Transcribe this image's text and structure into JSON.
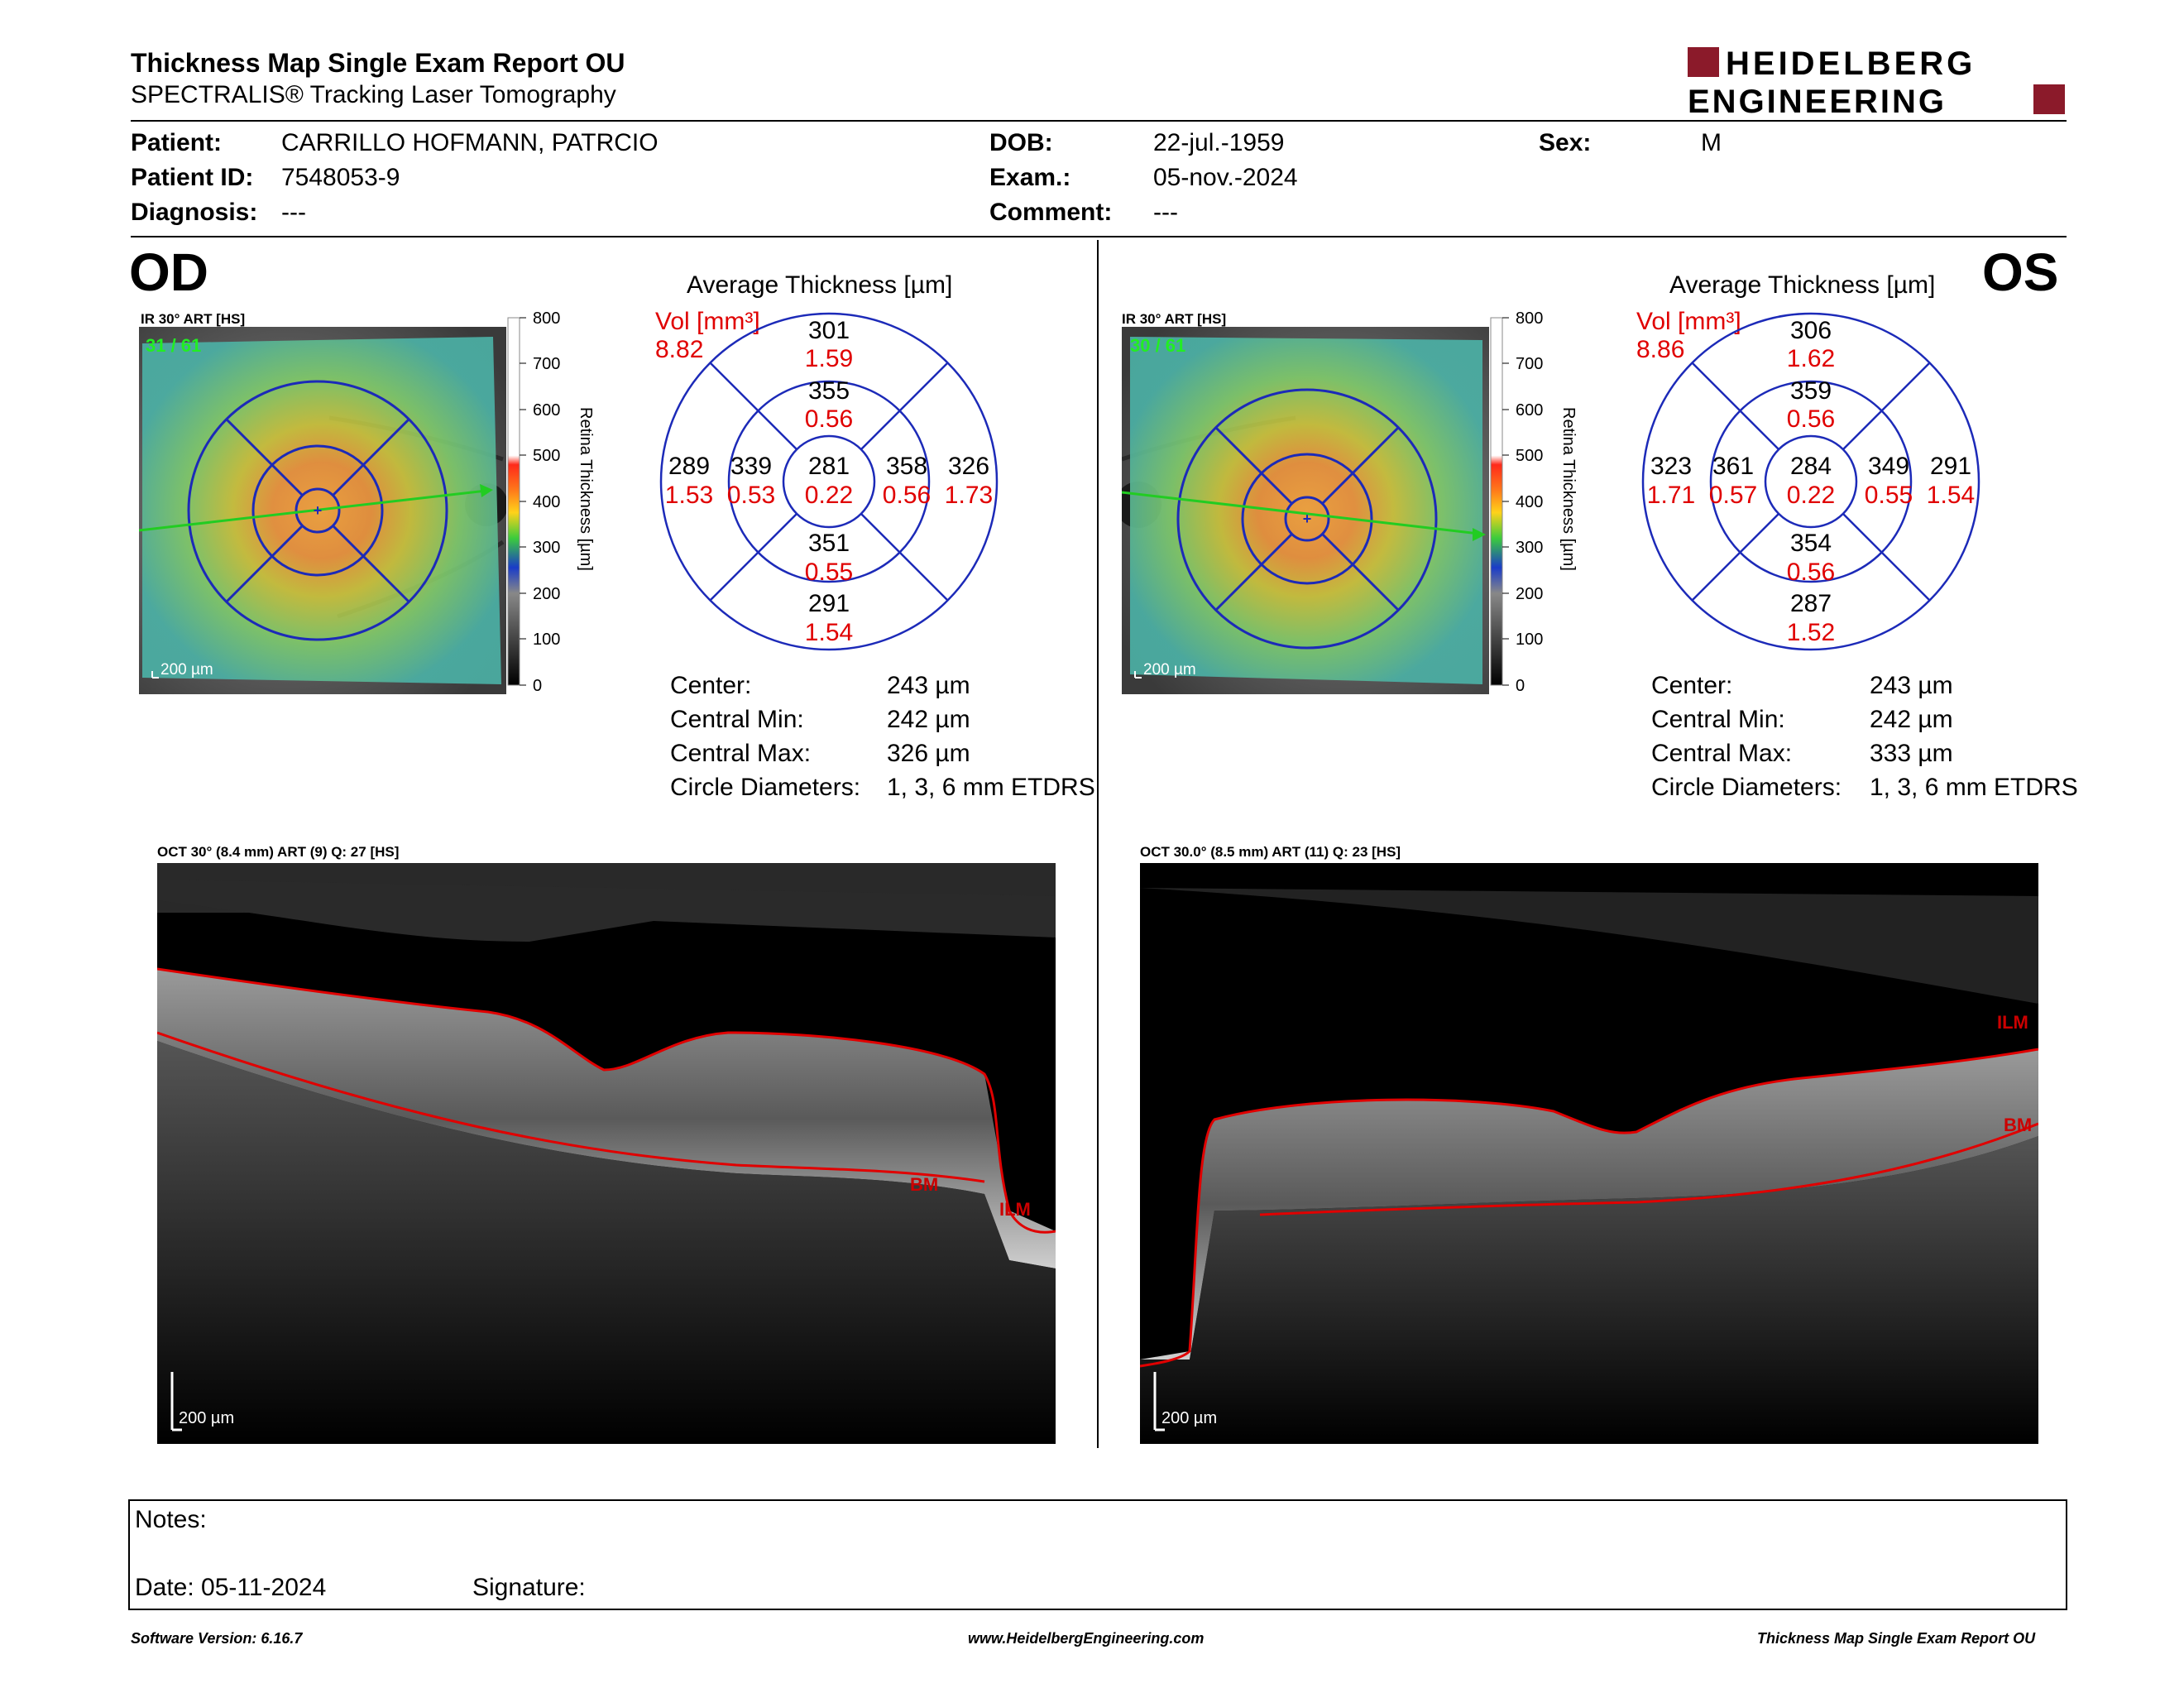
{
  "report": {
    "title": "Thickness Map Single Exam Report OU",
    "subtitle": "SPECTRALIS® Tracking Laser Tomography",
    "brand_top": "HEIDELBERG",
    "brand_bottom": "ENGINEERING",
    "brand_color": "#8b1a2a"
  },
  "patient": {
    "patient_label": "Patient:",
    "patient_value": "CARRILLO HOFMANN, PATRCIO",
    "id_label": "Patient ID:",
    "id_value": "7548053-9",
    "diag_label": "Diagnosis:",
    "diag_value": "---",
    "dob_label": "DOB:",
    "dob_value": "22-jul.-1959",
    "exam_label": "Exam.:",
    "exam_value": "05-nov.-2024",
    "comment_label": "Comment:",
    "comment_value": "---",
    "sex_label": "Sex:",
    "sex_value": "M"
  },
  "od": {
    "eye": "OD",
    "ir_label": "IR 30° ART [HS]",
    "frame": "31 / 61",
    "scale": "200 µm",
    "colorbar_ticks": [
      "800",
      "700",
      "600",
      "500",
      "400",
      "300",
      "200",
      "100",
      "0"
    ],
    "colorbar_title": "Retina Thickness [µm]",
    "avg_title": "Average Thickness [µm]",
    "vol_label": "Vol [mm³]",
    "vol_value": "8.82",
    "sectors": {
      "outer_top": {
        "t": "301",
        "v": "1.59"
      },
      "inner_top": {
        "t": "355",
        "v": "0.56"
      },
      "outer_left": {
        "t": "289",
        "v": "1.53"
      },
      "inner_left": {
        "t": "339",
        "v": "0.53"
      },
      "center": {
        "t": "281",
        "v": "0.22"
      },
      "inner_right": {
        "t": "358",
        "v": "0.56"
      },
      "outer_right": {
        "t": "326",
        "v": "1.73"
      },
      "inner_bottom": {
        "t": "351",
        "v": "0.55"
      },
      "outer_bottom": {
        "t": "291",
        "v": "1.54"
      }
    },
    "stats": [
      {
        "label": "Center:",
        "value": "243 µm"
      },
      {
        "label": "Central Min:",
        "value": "242 µm"
      },
      {
        "label": "Central Max:",
        "value": "326 µm"
      },
      {
        "label": "Circle Diameters:",
        "value": "1, 3, 6 mm ETDRS"
      }
    ],
    "oct_label": "OCT 30° (8.4 mm) ART (9) Q: 27 [HS]",
    "oct_scale": "200 µm",
    "ilm": "ILM",
    "bm": "BM"
  },
  "os": {
    "eye": "OS",
    "ir_label": "IR 30° ART [HS]",
    "frame": "30 / 61",
    "scale": "200 µm",
    "colorbar_ticks": [
      "800",
      "700",
      "600",
      "500",
      "400",
      "300",
      "200",
      "100",
      "0"
    ],
    "colorbar_title": "Retina Thickness [µm]",
    "avg_title": "Average Thickness [µm]",
    "vol_label": "Vol [mm³]",
    "vol_value": "8.86",
    "sectors": {
      "outer_top": {
        "t": "306",
        "v": "1.62"
      },
      "inner_top": {
        "t": "359",
        "v": "0.56"
      },
      "outer_left": {
        "t": "323",
        "v": "1.71"
      },
      "inner_left": {
        "t": "361",
        "v": "0.57"
      },
      "center": {
        "t": "284",
        "v": "0.22"
      },
      "inner_right": {
        "t": "349",
        "v": "0.55"
      },
      "outer_right": {
        "t": "291",
        "v": "1.54"
      },
      "inner_bottom": {
        "t": "354",
        "v": "0.56"
      },
      "outer_bottom": {
        "t": "287",
        "v": "1.52"
      }
    },
    "stats": [
      {
        "label": "Center:",
        "value": "243 µm"
      },
      {
        "label": "Central Min:",
        "value": "242 µm"
      },
      {
        "label": "Central Max:",
        "value": "333 µm"
      },
      {
        "label": "Circle Diameters:",
        "value": "1, 3, 6 mm ETDRS"
      }
    ],
    "oct_label": "OCT 30.0° (8.5 mm) ART (11) Q: 23 [HS]",
    "oct_scale": "200 µm",
    "ilm": "ILM",
    "bm": "BM"
  },
  "notes": {
    "notes_label": "Notes:",
    "date_label": "Date: 05-11-2024",
    "signature_label": "Signature:"
  },
  "footer": {
    "left": "Software Version: 6.16.7",
    "center": "www.HeidelbergEngineering.com",
    "right": "Thickness Map Single Exam Report OU"
  }
}
